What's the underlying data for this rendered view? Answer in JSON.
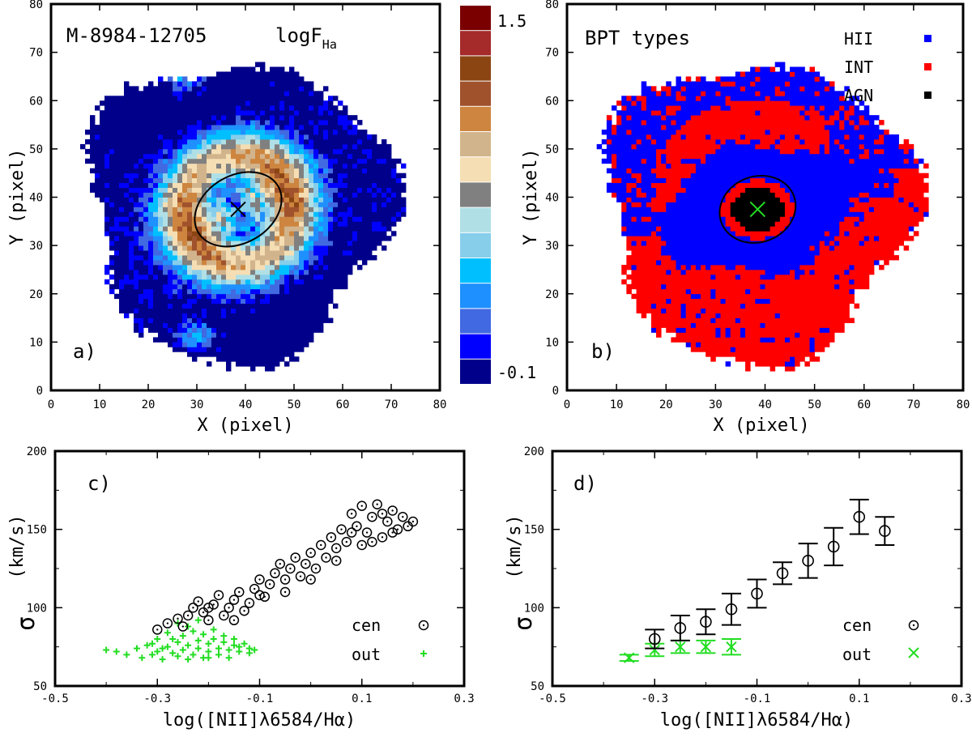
{
  "colors": {
    "hii": "#0000ff",
    "int": "#ff0000",
    "agn": "#000000",
    "cen": "#000000",
    "out": "#22dd22"
  },
  "colorbar": {
    "top_label": "1.5",
    "bottom_label": "-0.1",
    "colors": [
      "#7a0000",
      "#a52a2a",
      "#8b4513",
      "#a0522d",
      "#cd853f",
      "#d2b48c",
      "#f5deb3",
      "#808080",
      "#b0e0e6",
      "#87ceeb",
      "#00bfff",
      "#1e90ff",
      "#4169e1",
      "#0000ff",
      "#00008b"
    ]
  },
  "chart_data": [
    {
      "id": "a",
      "type": "heatmap",
      "panel_label": "a)",
      "title": "M-8984-12705",
      "quantity": "logF",
      "quantity_sub": "Ha",
      "xlabel": "X (pixel)",
      "ylabel": "Y (pixel)",
      "xlim": [
        0,
        80
      ],
      "ylim": [
        0,
        80
      ],
      "xticks": [
        "0",
        "10",
        "20",
        "30",
        "40",
        "50",
        "60",
        "70",
        "80"
      ],
      "yticks": [
        "0",
        "10",
        "20",
        "30",
        "40",
        "50",
        "60",
        "70",
        "80"
      ],
      "center": [
        38.5,
        37.5
      ],
      "ellipse": {
        "cx": 38.5,
        "cy": 37.5,
        "rx": 9.5,
        "ry": 7.0,
        "angle": -30
      }
    },
    {
      "id": "b",
      "type": "heatmap",
      "panel_label": "b)",
      "title": "BPT types",
      "xlabel": "X (pixel)",
      "ylabel": "Y (pixel)",
      "xlim": [
        0,
        80
      ],
      "ylim": [
        0,
        80
      ],
      "xticks": [
        "0",
        "10",
        "20",
        "30",
        "40",
        "50",
        "60",
        "70",
        "80"
      ],
      "yticks": [
        "0",
        "10",
        "20",
        "30",
        "40",
        "50",
        "60",
        "70",
        "80"
      ],
      "legend": [
        {
          "label": "HII",
          "color": "#0000ff"
        },
        {
          "label": "INT",
          "color": "#ff0000"
        },
        {
          "label": "AGN",
          "color": "#000000"
        }
      ],
      "center": [
        38.5,
        37.5
      ],
      "ellipse": {
        "cx": 38.5,
        "cy": 37.5,
        "rx": 7.8,
        "ry": 6.8,
        "angle": -20
      }
    },
    {
      "id": "c",
      "type": "scatter",
      "panel_label": "c)",
      "xlabel": "log([NII]λ6584/Hα)",
      "ylabel_sym": "σ",
      "ylabel_unit": "(km/s)",
      "xlim": [
        -0.5,
        0.3
      ],
      "ylim": [
        50,
        200
      ],
      "xticks": [
        "-0.5",
        "-0.3",
        "-0.1",
        "0.1",
        "0.3"
      ],
      "yticks": [
        "50",
        "100",
        "150",
        "200"
      ],
      "legend": [
        {
          "label": "cen",
          "marker": "circle-dot"
        },
        {
          "label": "out",
          "marker": "plus"
        }
      ],
      "series": [
        {
          "name": "cen",
          "points": [
            [
              -0.3,
              86
            ],
            [
              -0.28,
              90
            ],
            [
              -0.26,
              93
            ],
            [
              -0.24,
              95
            ],
            [
              -0.23,
              100
            ],
            [
              -0.22,
              104
            ],
            [
              -0.21,
              97
            ],
            [
              -0.2,
              92
            ],
            [
              -0.19,
              102
            ],
            [
              -0.18,
              108
            ],
            [
              -0.17,
              95
            ],
            [
              -0.16,
              100
            ],
            [
              -0.15,
              105
            ],
            [
              -0.14,
              110
            ],
            [
              -0.13,
              98
            ],
            [
              -0.12,
              103
            ],
            [
              -0.11,
              112
            ],
            [
              -0.1,
              118
            ],
            [
              -0.09,
              107
            ],
            [
              -0.08,
              115
            ],
            [
              -0.07,
              122
            ],
            [
              -0.06,
              128
            ],
            [
              -0.05,
              118
            ],
            [
              -0.04,
              125
            ],
            [
              -0.03,
              132
            ],
            [
              -0.02,
              120
            ],
            [
              -0.01,
              128
            ],
            [
              0.0,
              135
            ],
            [
              0.01,
              125
            ],
            [
              0.02,
              140
            ],
            [
              0.03,
              132
            ],
            [
              0.04,
              145
            ],
            [
              0.05,
              138
            ],
            [
              0.06,
              150
            ],
            [
              0.07,
              142
            ],
            [
              0.08,
              160
            ],
            [
              0.09,
              152
            ],
            [
              0.1,
              165
            ],
            [
              0.11,
              148
            ],
            [
              0.12,
              158
            ],
            [
              0.13,
              166
            ],
            [
              0.14,
              145
            ],
            [
              0.15,
              155
            ],
            [
              0.16,
              162
            ],
            [
              0.17,
              150
            ],
            [
              0.18,
              158
            ],
            [
              0.19,
              152
            ],
            [
              0.2,
              155
            ],
            [
              0.08,
              148
            ],
            [
              0.1,
              140
            ],
            [
              0.12,
              142
            ],
            [
              0.14,
              160
            ],
            [
              0.16,
              148
            ],
            [
              -0.05,
              110
            ],
            [
              -0.1,
              108
            ],
            [
              -0.15,
              92
            ],
            [
              -0.2,
              100
            ],
            [
              -0.25,
              88
            ],
            [
              0.0,
              118
            ],
            [
              0.05,
              130
            ]
          ]
        },
        {
          "name": "out",
          "points": [
            [
              -0.4,
              73
            ],
            [
              -0.38,
              72
            ],
            [
              -0.36,
              70
            ],
            [
              -0.34,
              74
            ],
            [
              -0.33,
              68
            ],
            [
              -0.32,
              76
            ],
            [
              -0.31,
              70
            ],
            [
              -0.3,
              72
            ],
            [
              -0.3,
              80
            ],
            [
              -0.29,
              67
            ],
            [
              -0.28,
              75
            ],
            [
              -0.28,
              84
            ],
            [
              -0.27,
              71
            ],
            [
              -0.26,
              78
            ],
            [
              -0.26,
              69
            ],
            [
              -0.25,
              82
            ],
            [
              -0.25,
              73
            ],
            [
              -0.24,
              76
            ],
            [
              -0.24,
              88
            ],
            [
              -0.23,
              70
            ],
            [
              -0.22,
              79
            ],
            [
              -0.22,
              74
            ],
            [
              -0.21,
              83
            ],
            [
              -0.21,
              68
            ],
            [
              -0.2,
              77
            ],
            [
              -0.2,
              72
            ],
            [
              -0.19,
              80
            ],
            [
              -0.19,
              86
            ],
            [
              -0.18,
              74
            ],
            [
              -0.18,
              70
            ],
            [
              -0.17,
              78
            ],
            [
              -0.17,
              82
            ],
            [
              -0.16,
              73
            ],
            [
              -0.16,
              68
            ],
            [
              -0.15,
              76
            ],
            [
              -0.15,
              80
            ],
            [
              -0.14,
              72
            ],
            [
              -0.14,
              75
            ],
            [
              -0.13,
              77
            ],
            [
              -0.12,
              71
            ],
            [
              -0.12,
              74
            ],
            [
              -0.11,
              73
            ],
            [
              -0.27,
              80
            ],
            [
              -0.23,
              85
            ],
            [
              -0.29,
              74
            ],
            [
              -0.31,
              77
            ],
            [
              -0.24,
              67
            ],
            [
              -0.2,
              68
            ],
            [
              -0.26,
              90
            ],
            [
              -0.22,
              92
            ]
          ]
        }
      ]
    },
    {
      "id": "d",
      "type": "scatter",
      "panel_label": "d)",
      "xlabel": "log([NII]λ6584/Hα)",
      "ylabel_sym": "σ",
      "ylabel_unit": "(km/s)",
      "xlim": [
        -0.5,
        0.3
      ],
      "ylim": [
        50,
        200
      ],
      "xticks": [
        "-0.5",
        "-0.3",
        "-0.1",
        "0.1",
        "0.3"
      ],
      "yticks": [
        "50",
        "100",
        "150",
        "200"
      ],
      "legend": [
        {
          "label": "cen",
          "marker": "circle-dot"
        },
        {
          "label": "out",
          "marker": "cross"
        }
      ],
      "series": [
        {
          "name": "cen",
          "points": [
            [
              -0.3,
              80,
              6
            ],
            [
              -0.25,
              87,
              8
            ],
            [
              -0.2,
              91,
              8
            ],
            [
              -0.15,
              99,
              10
            ],
            [
              -0.1,
              109,
              9
            ],
            [
              -0.05,
              122,
              7
            ],
            [
              0.0,
              130,
              11
            ],
            [
              0.05,
              139,
              12
            ],
            [
              0.1,
              158,
              11
            ],
            [
              0.15,
              149,
              9
            ]
          ]
        },
        {
          "name": "out",
          "points": [
            [
              -0.35,
              68,
              2
            ],
            [
              -0.3,
              73,
              4
            ],
            [
              -0.25,
              75,
              4
            ],
            [
              -0.2,
              75,
              4
            ],
            [
              -0.15,
              75,
              5
            ]
          ]
        }
      ]
    }
  ]
}
